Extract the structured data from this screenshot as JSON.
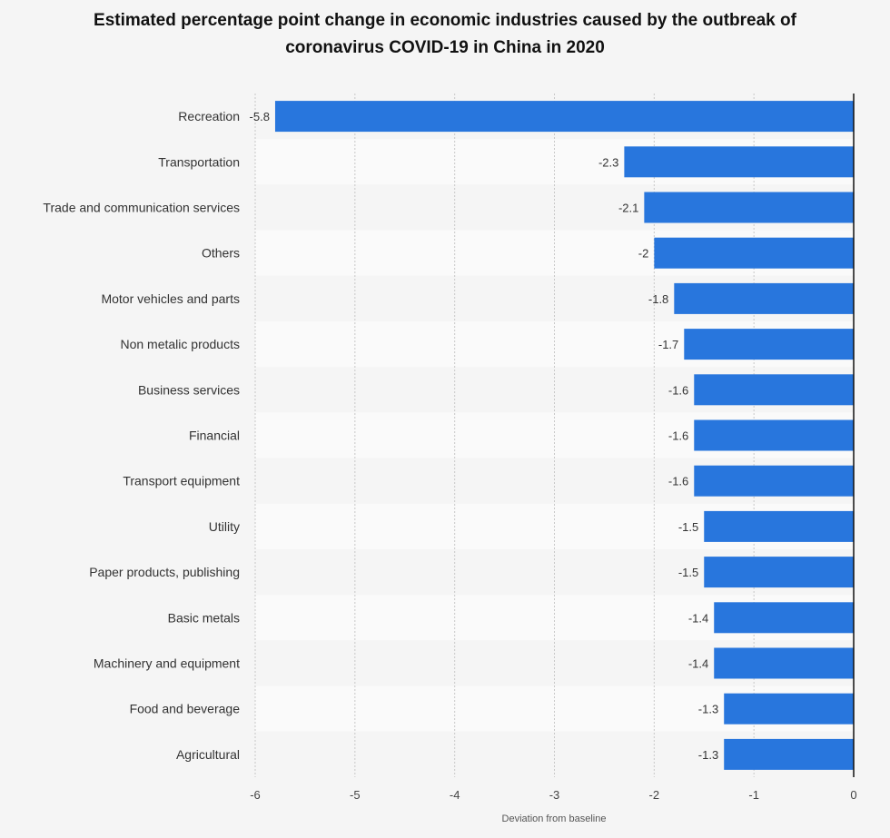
{
  "chart_data": {
    "type": "bar",
    "orientation": "horizontal",
    "title_line1": "Estimated percentage point change in economic industries caused by the outbreak of",
    "title_line2": "coronavirus COVID-19 in China in 2020",
    "xlabel": "Deviation from baseline",
    "xlim": [
      -6,
      0
    ],
    "xticks": [
      -6,
      -5,
      -4,
      -3,
      -2,
      -1,
      0
    ],
    "categories": [
      "Recreation",
      "Transportation",
      "Trade and communication services",
      "Others",
      "Motor vehicles and parts",
      "Non metalic products",
      "Business services",
      "Financial",
      "Transport equipment",
      "Utility",
      "Paper products, publishing",
      "Basic metals",
      "Machinery and equipment",
      "Food and beverage",
      "Agricultural"
    ],
    "values": [
      -5.8,
      -2.3,
      -2.1,
      -2,
      -1.8,
      -1.7,
      -1.6,
      -1.6,
      -1.6,
      -1.5,
      -1.5,
      -1.4,
      -1.4,
      -1.3,
      -1.3
    ],
    "bar_color": "#2876dd"
  }
}
